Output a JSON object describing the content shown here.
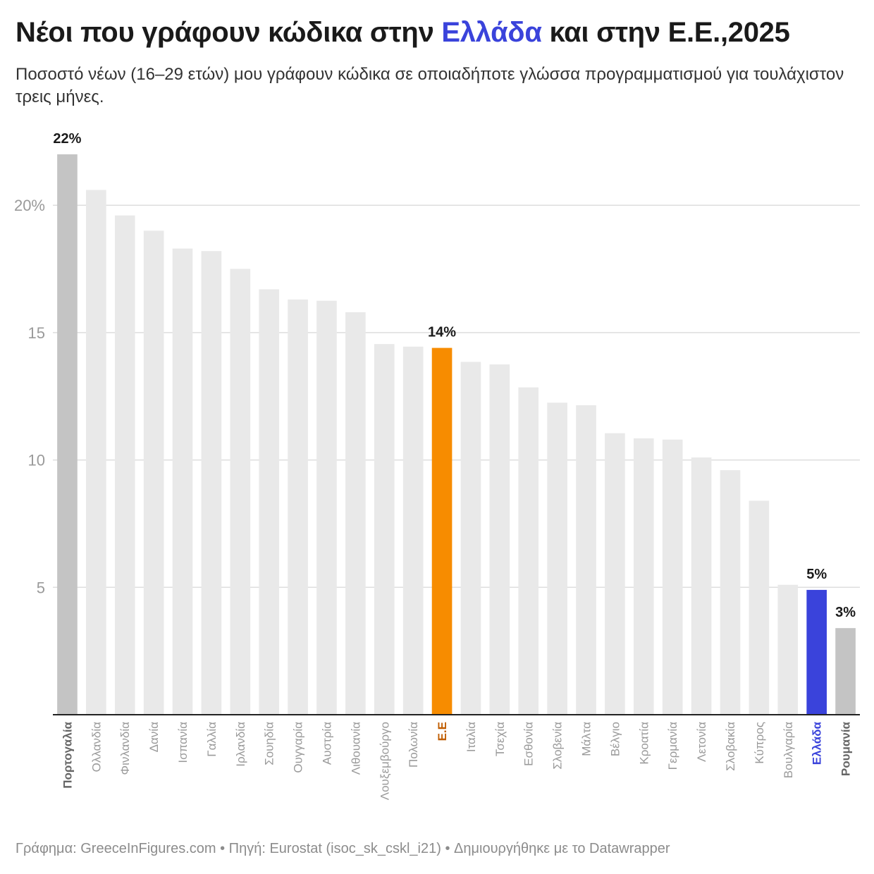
{
  "title": {
    "prefix": "Νέοι που γράφουν κώδικα στην ",
    "highlight": "Ελλάδα",
    "suffix": " και στην Ε.Ε.,2025",
    "highlight_color": "#3a43db"
  },
  "subtitle": "Ποσοστό νέων (16–29 ετών) μου γράφουν κώδικα σε οποιαδήποτε γλώσσα προγραμματισμού για τουλάχιστον τρεις μήνες.",
  "footer": "Γράφημα: GreeceInFigures.com • Πηγή: Eurostat (isoc_sk_cskl_i21) • Δημιουργήθηκε με το Datawrapper",
  "colors": {
    "default_bar": "#e9e9e9",
    "extreme_bar": "#c4c4c4",
    "eu_bar": "#f78c00",
    "greece_bar": "#3a43db",
    "eu_label": "#c05d00",
    "default_label": "#9a9a9a",
    "extreme_label": "#666666",
    "gridline": "#dedede",
    "baseline": "#222222"
  },
  "chart_data": {
    "type": "bar",
    "title": "Νέοι που γράφουν κώδικα στην Ελλάδα και στην Ε.Ε.,2025",
    "ylim": [
      0,
      22.8
    ],
    "yticks": [
      {
        "value": 5,
        "label": "5"
      },
      {
        "value": 10,
        "label": "10"
      },
      {
        "value": 15,
        "label": "15"
      },
      {
        "value": 20,
        "label": "20%"
      }
    ],
    "grid": true,
    "categories": [
      "Πορτογαλία",
      "Ολλανδία",
      "Φινλανδία",
      "Δανία",
      "Ισπανία",
      "Γαλλία",
      "Ιρλανδία",
      "Σουηδία",
      "Ουγγαρία",
      "Αυστρία",
      "Λιθουανία",
      "Λουξεμβούργο",
      "Πολωνία",
      "Ε.Ε",
      "Ιταλία",
      "Τσεχία",
      "Εσθονία",
      "Σλοβενία",
      "Μάλτα",
      "Βέλγιο",
      "Κροατία",
      "Γερμανία",
      "Λετονία",
      "Σλοβακία",
      "Κύπρος",
      "Βουλγαρία",
      "Ελλάδα",
      "Ρουμανία"
    ],
    "values": [
      22.0,
      20.6,
      19.6,
      19.0,
      18.3,
      18.2,
      17.5,
      16.7,
      16.3,
      16.25,
      15.8,
      14.55,
      14.45,
      14.4,
      13.85,
      13.75,
      12.85,
      12.25,
      12.15,
      11.05,
      10.85,
      10.8,
      10.1,
      9.6,
      8.4,
      5.1,
      4.9,
      3.4
    ],
    "styles": [
      "extreme",
      "default",
      "default",
      "default",
      "default",
      "default",
      "default",
      "default",
      "default",
      "default",
      "default",
      "default",
      "default",
      "eu",
      "default",
      "default",
      "default",
      "default",
      "default",
      "default",
      "default",
      "default",
      "default",
      "default",
      "default",
      "default",
      "greece",
      "extreme"
    ],
    "value_labels": {
      "0": "22%",
      "13": "14%",
      "26": "5%",
      "27": "3%"
    }
  }
}
